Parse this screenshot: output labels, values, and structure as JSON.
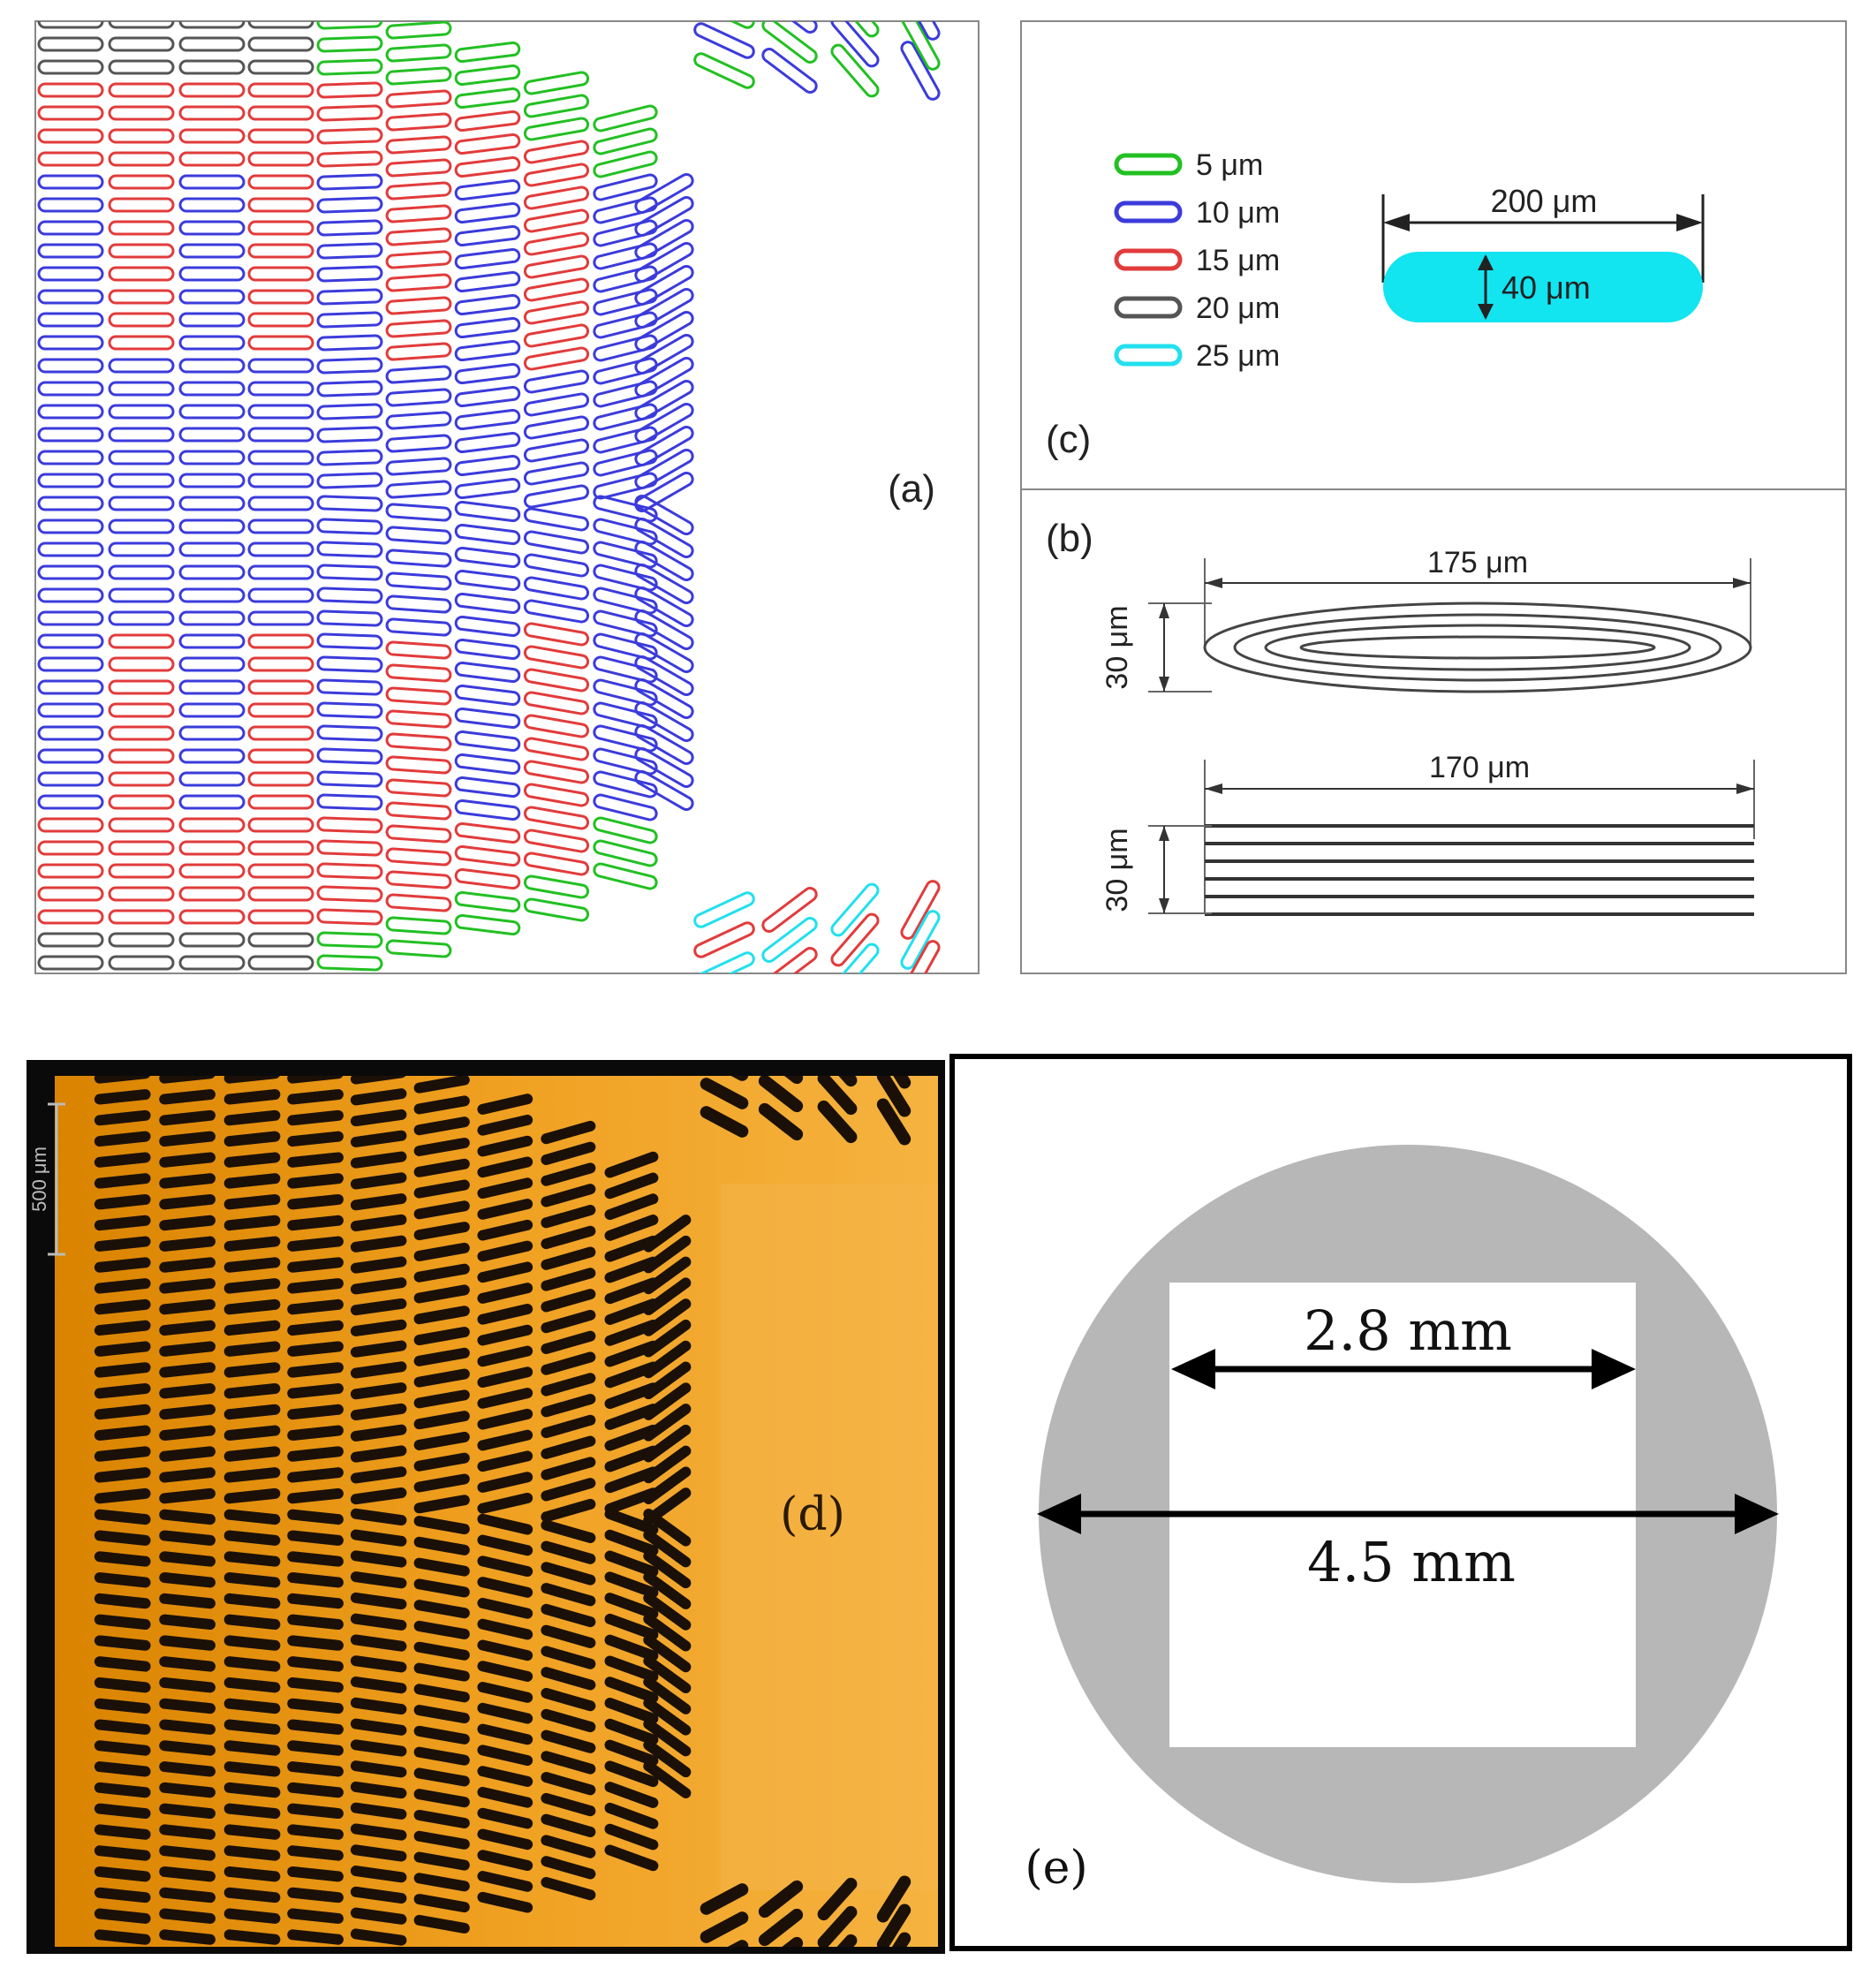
{
  "panels": {
    "a": {
      "label": "(a)"
    },
    "b": {
      "label": "(b)",
      "ellipse": {
        "width_label": "175 μm",
        "height_label": "30 μm"
      },
      "lines": {
        "width_label": "170 μm",
        "height_label": "30 μm"
      }
    },
    "c": {
      "label": "(c)",
      "legend": [
        {
          "label": "5 μm",
          "color": "#22c022"
        },
        {
          "label": "10 μm",
          "color": "#3b3bdc"
        },
        {
          "label": "15 μm",
          "color": "#e23b3b"
        },
        {
          "label": "20 μm",
          "color": "#555555"
        },
        {
          "label": "25 μm",
          "color": "#22e0ee"
        }
      ],
      "pillar": {
        "length_label": "200 μm",
        "width_label": "40 μm",
        "fill": "#12e4f0"
      }
    },
    "d": {
      "label": "(d)",
      "scale_bar": "500 μm"
    },
    "e": {
      "label": "(e)",
      "inner_label": "2.8 mm",
      "outer_label": "4.5 mm",
      "disc_color": "#b7b7b7"
    }
  }
}
